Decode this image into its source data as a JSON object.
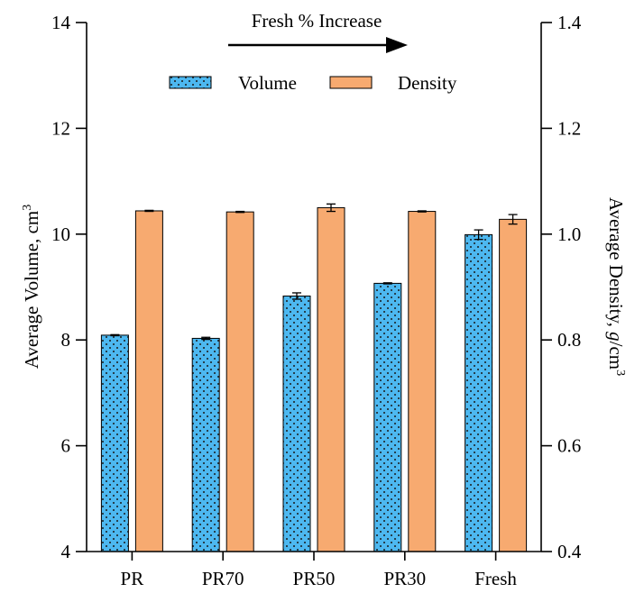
{
  "chart_data": {
    "type": "bar",
    "categories": [
      "PR",
      "PR70",
      "PR50",
      "PR30",
      "Fresh"
    ],
    "series": [
      {
        "name": "Volume",
        "axis": "left",
        "color": "#4db8f0",
        "pattern": "dotted",
        "values": [
          8.09,
          8.03,
          8.83,
          9.07,
          9.99
        ],
        "errors": [
          0.01,
          0.02,
          0.06,
          0.01,
          0.09
        ]
      },
      {
        "name": "Density",
        "axis": "right",
        "color": "#f7aa70",
        "values": [
          1.044,
          1.042,
          1.05,
          1.043,
          1.028
        ],
        "errors": [
          0.001,
          0.001,
          0.007,
          0.001,
          0.009
        ]
      }
    ],
    "y_left": {
      "label": "Average Volume, cm",
      "label_sup": "3",
      "lim": [
        4,
        14
      ],
      "ticks": [
        4,
        6,
        8,
        10,
        12,
        14
      ]
    },
    "y_right": {
      "label_main": "Average Density, ",
      "label_italic": "g",
      "label_rest": "/cm",
      "label_sup": "3",
      "lim": [
        0.4,
        1.4
      ],
      "ticks": [
        "0.4",
        "0.6",
        "0.8",
        "1.0",
        "1.2",
        "1.4"
      ]
    },
    "annotation": "Fresh % Increase",
    "legend_position": "top-center",
    "grid": false
  }
}
